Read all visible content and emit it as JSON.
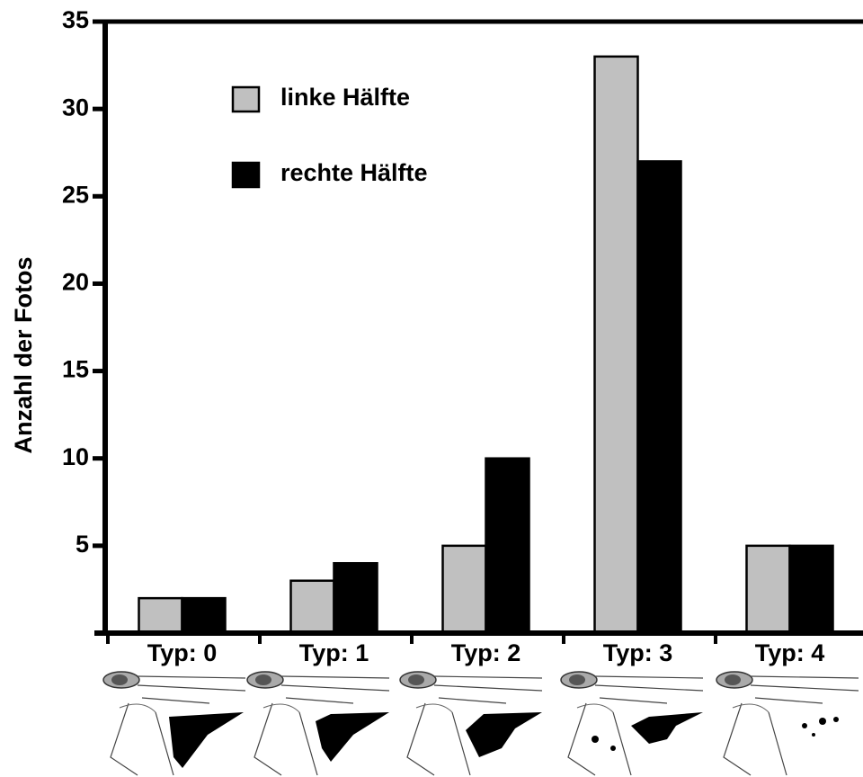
{
  "chart_data": {
    "type": "bar",
    "y_label": "Anzahl der Fotos",
    "categories": [
      "Typ: 0",
      "Typ: 1",
      "Typ: 2",
      "Typ: 3",
      "Typ: 4"
    ],
    "series": [
      {
        "name": "linke Hälfte",
        "color": "#c0c0c0",
        "values": [
          2,
          3,
          5,
          33,
          5
        ]
      },
      {
        "name": "rechte Hälfte",
        "color": "#000000",
        "values": [
          2,
          4,
          10,
          27,
          5
        ]
      }
    ],
    "ylim": [
      0,
      35
    ],
    "yticks": [
      5,
      10,
      15,
      20,
      25,
      30,
      35
    ],
    "legend": "top-left",
    "grid": false
  }
}
